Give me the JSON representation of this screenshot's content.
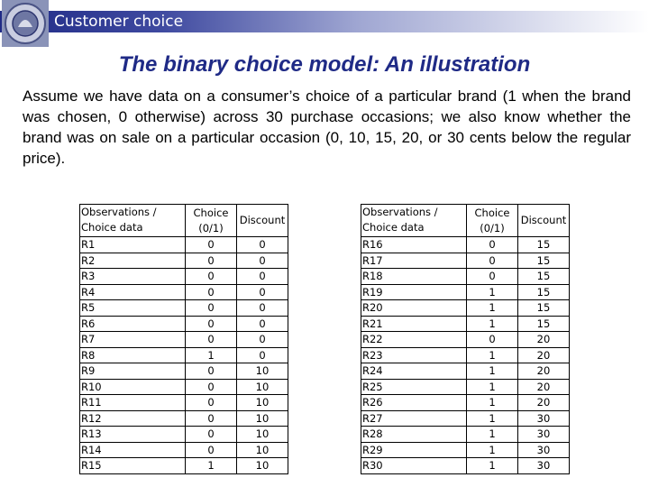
{
  "header": {
    "title": "Customer choice"
  },
  "slide": {
    "title": "The binary choice model: An illustration",
    "intro": "Assume we have data on a consumer’s choice of a particular brand (1 when the brand was chosen, 0 otherwise) across 30 purchase occasions; we also know whether the brand was on sale on a particular occasion (0, 10, 15, 20, or 30 cents below the regular price)."
  },
  "columns": {
    "obs_line1": "Observations /",
    "obs_line2": "Choice data",
    "choice_line1": "Choice",
    "choice_line2": "(0/1)",
    "discount": "Discount"
  },
  "table_left": [
    {
      "id": "R1",
      "choice": "0",
      "discount": "0"
    },
    {
      "id": "R2",
      "choice": "0",
      "discount": "0"
    },
    {
      "id": "R3",
      "choice": "0",
      "discount": "0"
    },
    {
      "id": "R4",
      "choice": "0",
      "discount": "0"
    },
    {
      "id": "R5",
      "choice": "0",
      "discount": "0"
    },
    {
      "id": "R6",
      "choice": "0",
      "discount": "0"
    },
    {
      "id": "R7",
      "choice": "0",
      "discount": "0"
    },
    {
      "id": "R8",
      "choice": "1",
      "discount": "0"
    },
    {
      "id": "R9",
      "choice": "0",
      "discount": "10"
    },
    {
      "id": "R10",
      "choice": "0",
      "discount": "10"
    },
    {
      "id": "R11",
      "choice": "0",
      "discount": "10"
    },
    {
      "id": "R12",
      "choice": "0",
      "discount": "10"
    },
    {
      "id": "R13",
      "choice": "0",
      "discount": "10"
    },
    {
      "id": "R14",
      "choice": "0",
      "discount": "10"
    },
    {
      "id": "R15",
      "choice": "1",
      "discount": "10"
    }
  ],
  "table_right": [
    {
      "id": "R16",
      "choice": "0",
      "discount": "15"
    },
    {
      "id": "R17",
      "choice": "0",
      "discount": "15"
    },
    {
      "id": "R18",
      "choice": "0",
      "discount": "15"
    },
    {
      "id": "R19",
      "choice": "1",
      "discount": "15"
    },
    {
      "id": "R20",
      "choice": "1",
      "discount": "15"
    },
    {
      "id": "R21",
      "choice": "1",
      "discount": "15"
    },
    {
      "id": "R22",
      "choice": "0",
      "discount": "20"
    },
    {
      "id": "R23",
      "choice": "1",
      "discount": "20"
    },
    {
      "id": "R24",
      "choice": "1",
      "discount": "20"
    },
    {
      "id": "R25",
      "choice": "1",
      "discount": "20"
    },
    {
      "id": "R26",
      "choice": "1",
      "discount": "20"
    },
    {
      "id": "R27",
      "choice": "1",
      "discount": "30"
    },
    {
      "id": "R28",
      "choice": "1",
      "discount": "30"
    },
    {
      "id": "R29",
      "choice": "1",
      "discount": "30"
    },
    {
      "id": "R30",
      "choice": "1",
      "discount": "30"
    }
  ]
}
